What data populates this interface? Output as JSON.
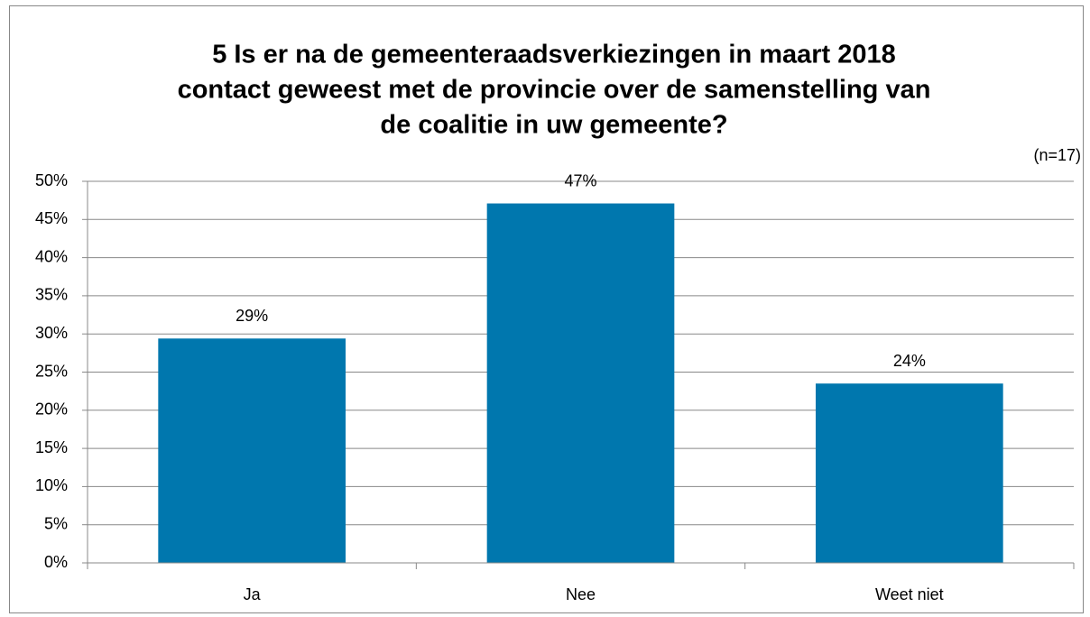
{
  "chart_data": {
    "type": "bar",
    "title": [
      "5 Is er na de gemeenteraadsverkiezingen in maart 2018",
      "contact geweest met de provincie over de samenstelling van",
      "de coalitie in uw gemeente?"
    ],
    "annotation": "(n=17)",
    "categories": [
      "Ja",
      "Nee",
      "Weet niet"
    ],
    "values": [
      29.4,
      47.1,
      23.5
    ],
    "value_labels": [
      "29%",
      "47%",
      "24%"
    ],
    "color": "#0077ae",
    "ylim": [
      0,
      50
    ],
    "yticks": [
      {
        "value": 0,
        "label": "0%"
      },
      {
        "value": 5,
        "label": "5%"
      },
      {
        "value": 10,
        "label": "10%"
      },
      {
        "value": 15,
        "label": "15%"
      },
      {
        "value": 20,
        "label": "20%"
      },
      {
        "value": 25,
        "label": "25%"
      },
      {
        "value": 30,
        "label": "30%"
      },
      {
        "value": 35,
        "label": "35%"
      },
      {
        "value": 40,
        "label": "40%"
      },
      {
        "value": 45,
        "label": "45%"
      },
      {
        "value": 50,
        "label": "50%"
      }
    ],
    "grid": true
  }
}
